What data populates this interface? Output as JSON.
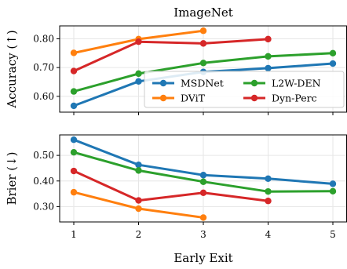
{
  "chart_data": {
    "type": "line",
    "title": "ImageNet",
    "xlabel": "Early Exit",
    "x": [
      1,
      2,
      3,
      4,
      5
    ],
    "xticks": [
      "1",
      "2",
      "3",
      "4",
      "5"
    ],
    "colors": {
      "MSDNet": "#1f77b4",
      "DViT": "#ff7f0e",
      "L2W-DEN": "#2ca02c",
      "Dyn-Perc": "#d62728"
    },
    "legend": {
      "placement": "lower-right of top panel",
      "entries": [
        "MSDNet",
        "DViT",
        "L2W-DEN",
        "Dyn-Perc"
      ]
    },
    "grid": true,
    "panels": [
      {
        "ylabel": "Accuracy (↑)",
        "ylim": [
          0.545,
          0.845
        ],
        "yticks": [
          0.6,
          0.7,
          0.8
        ],
        "yticklabels": [
          "0.60",
          "0.70",
          "0.80"
        ],
        "series": [
          {
            "name": "MSDNet",
            "x": [
              1,
              2,
              3,
              4,
              5
            ],
            "values": [
              0.567,
              0.652,
              0.685,
              0.698,
              0.714
            ]
          },
          {
            "name": "DViT",
            "x": [
              1,
              2,
              3
            ],
            "values": [
              0.751,
              0.799,
              0.828
            ]
          },
          {
            "name": "L2W-DEN",
            "x": [
              1,
              2,
              3,
              4,
              5
            ],
            "values": [
              0.617,
              0.679,
              0.716,
              0.739,
              0.75
            ]
          },
          {
            "name": "Dyn-Perc",
            "x": [
              1,
              2,
              3,
              4
            ],
            "values": [
              0.688,
              0.79,
              0.784,
              0.799
            ]
          }
        ]
      },
      {
        "ylabel": "Brier (↓)",
        "ylim": [
          0.24,
          0.58
        ],
        "yticks": [
          0.3,
          0.4,
          0.5
        ],
        "yticklabels": [
          "0.30",
          "0.40",
          "0.50"
        ],
        "series": [
          {
            "name": "MSDNet",
            "x": [
              1,
              2,
              3,
              4,
              5
            ],
            "values": [
              0.561,
              0.463,
              0.423,
              0.409,
              0.389
            ]
          },
          {
            "name": "DViT",
            "x": [
              1,
              2,
              3
            ],
            "values": [
              0.356,
              0.292,
              0.257
            ]
          },
          {
            "name": "L2W-DEN",
            "x": [
              1,
              2,
              3,
              4,
              5
            ],
            "values": [
              0.512,
              0.441,
              0.397,
              0.359,
              0.36
            ]
          },
          {
            "name": "Dyn-Perc",
            "x": [
              1,
              2,
              3,
              4
            ],
            "values": [
              0.439,
              0.324,
              0.354,
              0.322
            ]
          }
        ]
      }
    ]
  }
}
